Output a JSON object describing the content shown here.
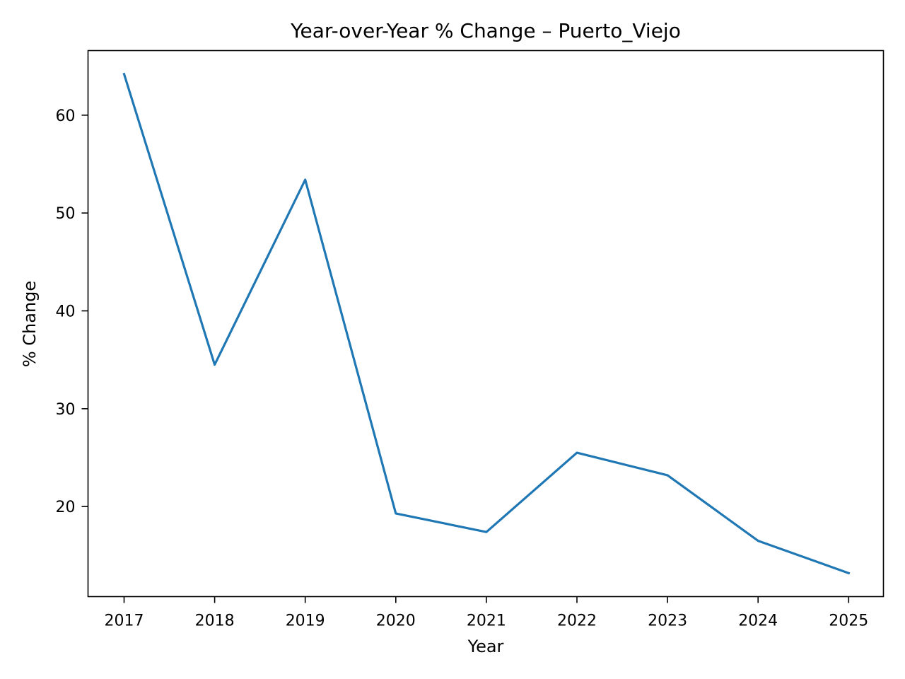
{
  "chart_data": {
    "type": "line",
    "title": "Year-over-Year % Change – Puerto_Viejo",
    "xlabel": "Year",
    "ylabel": "% Change",
    "x": [
      "2017",
      "2018",
      "2019",
      "2020",
      "2021",
      "2022",
      "2023",
      "2024",
      "2025"
    ],
    "series": [
      {
        "values": [
          64.2,
          34.5,
          53.4,
          19.3,
          17.4,
          25.5,
          23.2,
          16.5,
          13.2
        ]
      }
    ],
    "yticks": [
      20,
      30,
      40,
      50,
      60
    ],
    "ylim": [
      10.8,
      66.6
    ],
    "grid": false,
    "colors": {
      "line": "#1f77b4",
      "axes": "#000000",
      "background": "#ffffff"
    }
  }
}
